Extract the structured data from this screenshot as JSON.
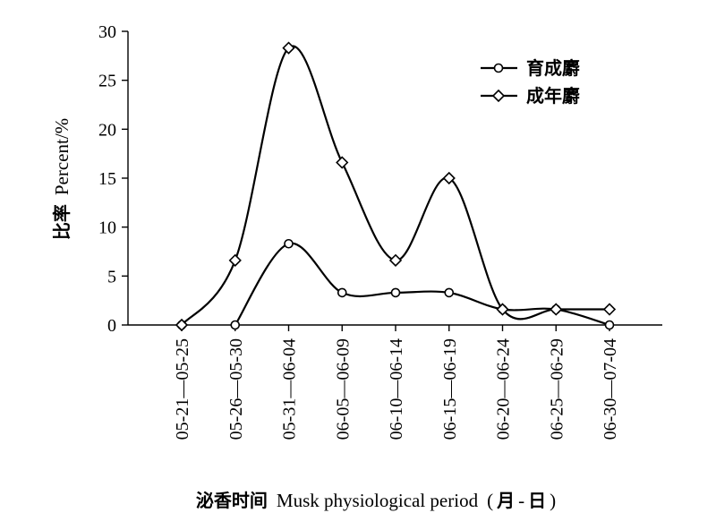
{
  "chart_data": {
    "type": "line",
    "categories": [
      "05-21—05-25",
      "05-26—05-30",
      "05-31—06-04",
      "06-05—06-09",
      "06-10—06-14",
      "06-15—06-19",
      "06-20—06-24",
      "06-25—06-29",
      "06-30—07-04"
    ],
    "series": [
      {
        "name": "育成麝",
        "marker": "circle",
        "values": [
          0,
          0,
          8.3,
          3.3,
          3.3,
          3.3,
          1.6,
          1.6,
          0
        ]
      },
      {
        "name": "成年麝",
        "marker": "diamond",
        "values": [
          0,
          6.6,
          28.3,
          16.6,
          6.6,
          15.0,
          1.6,
          1.6,
          1.6
        ]
      }
    ],
    "ylim": [
      0,
      30
    ],
    "yticks": [
      0,
      5,
      10,
      15,
      20,
      25,
      30
    ],
    "ylabel": {
      "cjk": "比率",
      "latin": "Percent/%"
    },
    "xlabel": {
      "cjk": "泌香时间",
      "latin": "Musk physiological period",
      "paren_open": "(",
      "unit_cjk_1": "月",
      "unit_sep": "-",
      "unit_cjk_2": "日",
      "paren_close": ")"
    },
    "legend_position": "top-right",
    "grid": false,
    "colors": {
      "line": "#000000",
      "marker_fill": "#ffffff"
    }
  }
}
